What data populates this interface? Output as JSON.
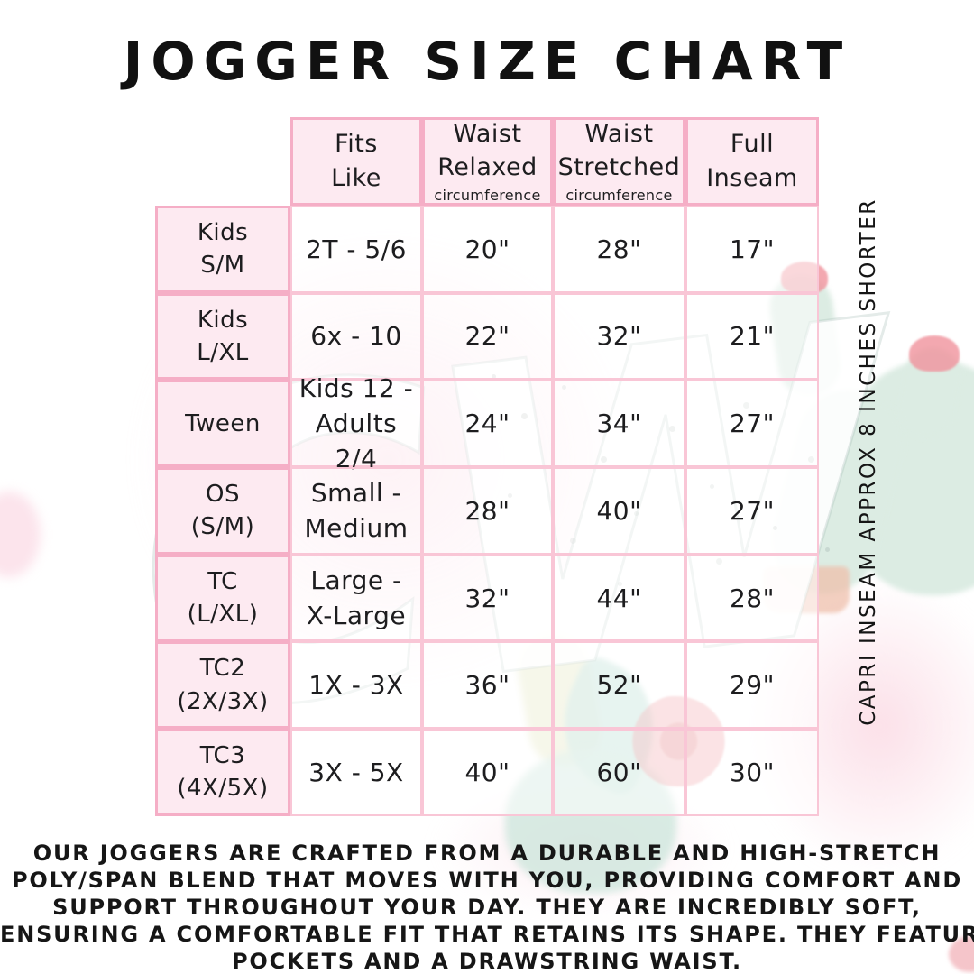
{
  "title": "JOGGER SIZE CHART",
  "side_note": "CAPRI INSEAM APPROX 8 INCHES SHORTER",
  "watermark": {
    "monogram": "CW"
  },
  "table": {
    "columns": [
      {
        "label": "Fits\nLike",
        "sub": ""
      },
      {
        "label": "Waist\nRelaxed",
        "sub": "circumference"
      },
      {
        "label": "Waist\nStretched",
        "sub": "circumference"
      },
      {
        "label": "Full\nInseam",
        "sub": ""
      }
    ],
    "rows": [
      {
        "size": "Kids\nS/M",
        "fits_like": "2T - 5/6",
        "waist_relaxed": "20\"",
        "waist_stretched": "28\"",
        "full_inseam": "17\""
      },
      {
        "size": "Kids\nL/XL",
        "fits_like": "6x - 10",
        "waist_relaxed": "22\"",
        "waist_stretched": "32\"",
        "full_inseam": "21\""
      },
      {
        "size": "Tween",
        "fits_like": "Kids 12 -\nAdults 2/4",
        "waist_relaxed": "24\"",
        "waist_stretched": "34\"",
        "full_inseam": "27\""
      },
      {
        "size": "OS\n(S/M)",
        "fits_like": "Small -\nMedium",
        "waist_relaxed": "28\"",
        "waist_stretched": "40\"",
        "full_inseam": "27\""
      },
      {
        "size": "TC\n(L/XL)",
        "fits_like": "Large -\nX-Large",
        "waist_relaxed": "32\"",
        "waist_stretched": "44\"",
        "full_inseam": "28\""
      },
      {
        "size": "TC2\n(2X/3X)",
        "fits_like": "1X - 3X",
        "waist_relaxed": "36\"",
        "waist_stretched": "52\"",
        "full_inseam": "29\""
      },
      {
        "size": "TC3\n(4X/5X)",
        "fits_like": "3X - 5X",
        "waist_relaxed": "40\"",
        "waist_stretched": "60\"",
        "full_inseam": "30\""
      }
    ]
  },
  "description_lines": [
    "OUR JOGGERS ARE CRAFTED FROM A DURABLE AND HIGH-STRETCH",
    "POLY/SPAN BLEND THAT MOVES WITH YOU, PROVIDING COMFORT AND",
    "SUPPORT THROUGHOUT YOUR DAY. THEY ARE INCREDIBLY SOFT,",
    "ENSURING A COMFORTABLE FIT THAT RETAINS ITS SHAPE. THEY FEATURE",
    "POCKETS AND A DRAWSTRING WAIST."
  ],
  "colors": {
    "border_strong": "#f5aec6",
    "border_light": "#f9c6d6",
    "cell_fill": "#fdeaf1",
    "text": "#1d1d1f",
    "watermark_pink": "#fbdce6",
    "watermark_mint": "#dcece3",
    "watermark_pot": "#efc0ac",
    "watermark_red": "#e25c62"
  }
}
